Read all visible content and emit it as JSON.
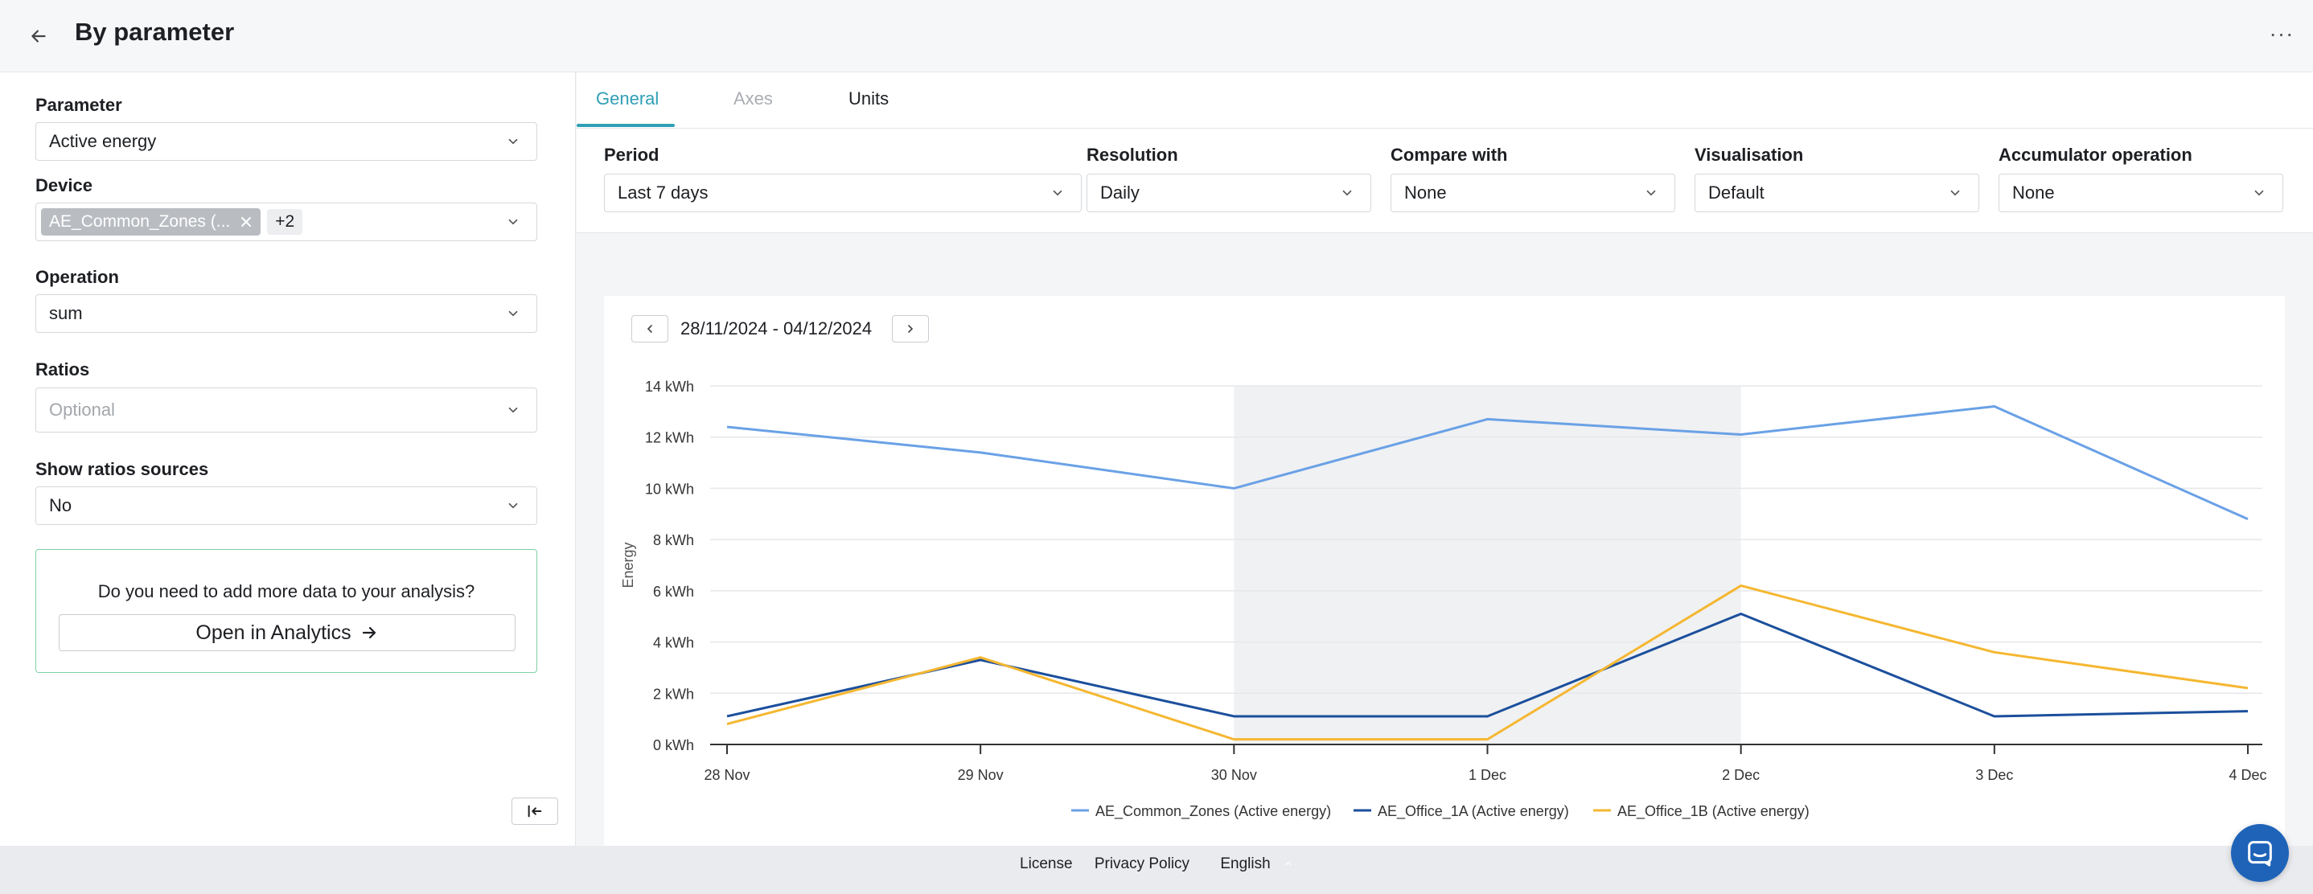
{
  "header": {
    "title": "By parameter",
    "back_icon": "arrow-left-icon",
    "more_icon": "more-horizontal-icon",
    "more_label": "···"
  },
  "sidebar": {
    "parameter": {
      "label": "Parameter",
      "value": "Active energy"
    },
    "device": {
      "label": "Device",
      "tag": "AE_Common_Zones (...",
      "more_count": "+2"
    },
    "operation": {
      "label": "Operation",
      "value": "sum"
    },
    "ratios": {
      "label": "Ratios",
      "placeholder": "Optional"
    },
    "show_ratios": {
      "label": "Show ratios sources",
      "value": "No"
    },
    "analytics": {
      "question": "Do you need to add more data to your analysis?",
      "button": "Open in Analytics"
    }
  },
  "tabs": [
    {
      "label": "General",
      "state": "active"
    },
    {
      "label": "Axes",
      "state": "disabled"
    },
    {
      "label": "Units",
      "state": "normal"
    }
  ],
  "filters": {
    "period": {
      "label": "Period",
      "value": "Last 7 days"
    },
    "resolution": {
      "label": "Resolution",
      "value": "Daily"
    },
    "compare": {
      "label": "Compare with",
      "value": "None"
    },
    "visualisation": {
      "label": "Visualisation",
      "value": "Default"
    },
    "accumulator": {
      "label": "Accumulator operation",
      "value": "None"
    }
  },
  "chart_header": {
    "date_range": "28/11/2024 - 04/12/2024"
  },
  "chart_data": {
    "type": "line",
    "ylabel": "Energy",
    "ylim": [
      0,
      14
    ],
    "yticks": [
      "0 kWh",
      "2 kWh",
      "4 kWh",
      "6 kWh",
      "8 kWh",
      "10 kWh",
      "12 kWh",
      "14 kWh"
    ],
    "categories": [
      "28 Nov",
      "29 Nov",
      "30 Nov",
      "1 Dec",
      "2 Dec",
      "3 Dec",
      "4 Dec"
    ],
    "shaded_range": [
      "30 Nov",
      "2 Dec"
    ],
    "grid": true,
    "legend": "bottom-center",
    "series": [
      {
        "name": "AE_Common_Zones (Active energy)",
        "color": "#6aa1e6",
        "values": [
          12.4,
          11.4,
          10.0,
          12.7,
          12.1,
          13.2,
          8.8
        ]
      },
      {
        "name": "AE_Office_1A (Active energy)",
        "color": "#1b4f9c",
        "values": [
          1.1,
          3.3,
          1.1,
          1.1,
          5.1,
          1.1,
          1.3
        ]
      },
      {
        "name": "AE_Office_1B (Active energy)",
        "color": "#f5b731",
        "values": [
          0.8,
          3.4,
          0.2,
          0.2,
          6.2,
          3.6,
          2.2
        ]
      }
    ]
  },
  "footer": {
    "license": "License",
    "privacy": "Privacy Policy",
    "language": "English"
  }
}
